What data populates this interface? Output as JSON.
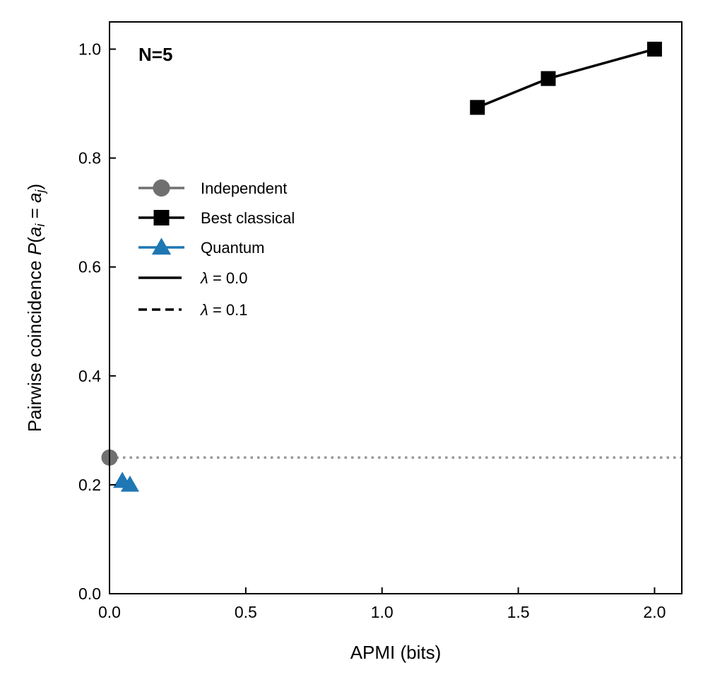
{
  "chart_data": {
    "type": "line",
    "panel_label": "N=5",
    "xlabel": "APMI (bits)",
    "ylabel": {
      "prefix": "Pairwise coincidence ",
      "P": "P",
      "open": "(",
      "a1": "a",
      "sub1": "i",
      "eq": " = ",
      "a2": "a",
      "sub2": "j",
      "close": ")"
    },
    "xlim": [
      0.0,
      2.1
    ],
    "ylim": [
      0.0,
      1.05
    ],
    "xticks": [
      0.0,
      0.5,
      1.0,
      1.5,
      2.0
    ],
    "xtick_labels": [
      "0.0",
      "0.5",
      "1.0",
      "1.5",
      "2.0"
    ],
    "yticks": [
      0.0,
      0.2,
      0.4,
      0.6,
      0.8,
      1.0
    ],
    "ytick_labels": [
      "0.0",
      "0.2",
      "0.4",
      "0.6",
      "0.8",
      "1.0"
    ],
    "reference_line": {
      "y": 0.25,
      "style": "dotted",
      "color": "#999999"
    },
    "series": [
      {
        "name": "Independent",
        "marker": "circle",
        "color": "#707070",
        "linestyle": "solid",
        "x": [
          0.0
        ],
        "y": [
          0.25
        ]
      },
      {
        "name": "Best classical",
        "marker": "square",
        "color": "#000000",
        "linestyle": "solid",
        "x": [
          1.35,
          1.61,
          2.0
        ],
        "y": [
          0.893,
          0.946,
          1.0
        ]
      },
      {
        "name": "Quantum",
        "marker": "triangle",
        "color": "#1f77b4",
        "linestyle": "solid",
        "x": [
          0.047,
          0.075
        ],
        "y": [
          0.207,
          0.2
        ]
      }
    ],
    "legend": {
      "position": "center-left",
      "entries": [
        {
          "label": "Independent",
          "kind": "marker",
          "marker": "circle",
          "color": "#707070"
        },
        {
          "label": "Best classical",
          "kind": "marker",
          "marker": "square",
          "color": "#000000"
        },
        {
          "label": "Quantum",
          "kind": "marker",
          "marker": "triangle",
          "color": "#1f77b4"
        },
        {
          "label": "λ = 0.0",
          "lambda": "λ",
          "rest": " = 0.0",
          "kind": "line",
          "linestyle": "solid",
          "color": "#000000"
        },
        {
          "label": "λ = 0.1",
          "lambda": "λ",
          "rest": " = 0.1",
          "kind": "line",
          "linestyle": "dashed",
          "color": "#000000"
        }
      ]
    }
  }
}
